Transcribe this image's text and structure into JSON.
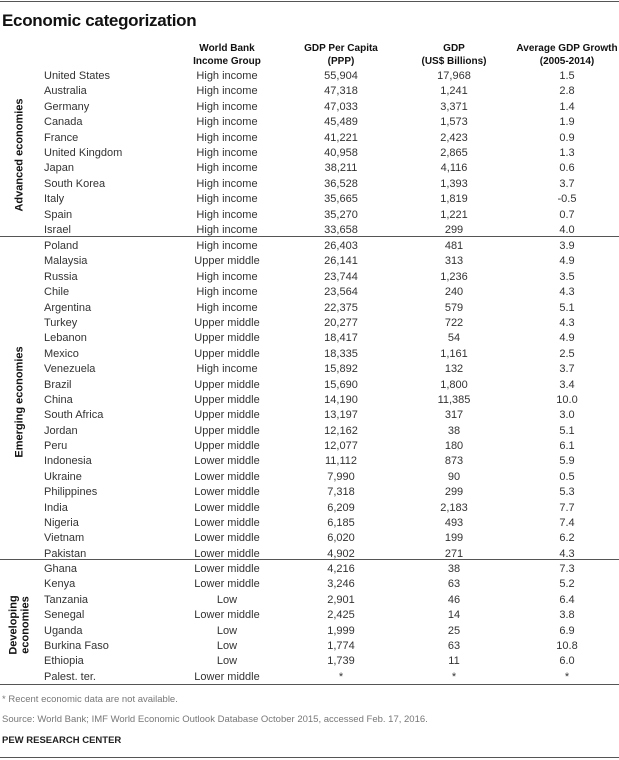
{
  "title": "Economic categorization",
  "headers": {
    "income": [
      "World Bank",
      "Income Group"
    ],
    "gdp_pc": [
      "GDP Per Capita",
      "(PPP)"
    ],
    "gdp": [
      "GDP",
      "(US$ Billions)"
    ],
    "growth": [
      "Average GDP Growth",
      "(2005-2014)"
    ]
  },
  "groups": [
    {
      "label": "Advanced economies",
      "rows": [
        [
          "United States",
          "High income",
          "55,904",
          "17,968",
          "1.5"
        ],
        [
          "Australia",
          "High income",
          "47,318",
          "1,241",
          "2.8"
        ],
        [
          "Germany",
          "High income",
          "47,033",
          "3,371",
          "1.4"
        ],
        [
          "Canada",
          "High income",
          "45,489",
          "1,573",
          "1.9"
        ],
        [
          "France",
          "High income",
          "41,221",
          "2,423",
          "0.9"
        ],
        [
          "United Kingdom",
          "High income",
          "40,958",
          "2,865",
          "1.3"
        ],
        [
          "Japan",
          "High income",
          "38,211",
          "4,116",
          "0.6"
        ],
        [
          "South Korea",
          "High income",
          "36,528",
          "1,393",
          "3.7"
        ],
        [
          "Italy",
          "High income",
          "35,665",
          "1,819",
          "-0.5"
        ],
        [
          "Spain",
          "High income",
          "35,270",
          "1,221",
          "0.7"
        ],
        [
          "Israel",
          "High income",
          "33,658",
          "299",
          "4.0"
        ]
      ]
    },
    {
      "label": "Emerging economies",
      "rows": [
        [
          "Poland",
          "High income",
          "26,403",
          "481",
          "3.9"
        ],
        [
          "Malaysia",
          "Upper middle",
          "26,141",
          "313",
          "4.9"
        ],
        [
          "Russia",
          "High income",
          "23,744",
          "1,236",
          "3.5"
        ],
        [
          "Chile",
          "High income",
          "23,564",
          "240",
          "4.3"
        ],
        [
          "Argentina",
          "High income",
          "22,375",
          "579",
          "5.1"
        ],
        [
          "Turkey",
          "Upper middle",
          "20,277",
          "722",
          "4.3"
        ],
        [
          "Lebanon",
          "Upper middle",
          "18,417",
          "54",
          "4.9"
        ],
        [
          "Mexico",
          "Upper middle",
          "18,335",
          "1,161",
          "2.5"
        ],
        [
          "Venezuela",
          "High income",
          "15,892",
          "132",
          "3.7"
        ],
        [
          "Brazil",
          "Upper middle",
          "15,690",
          "1,800",
          "3.4"
        ],
        [
          "China",
          "Upper middle",
          "14,190",
          "11,385",
          "10.0"
        ],
        [
          "South Africa",
          "Upper middle",
          "13,197",
          "317",
          "3.0"
        ],
        [
          "Jordan",
          "Upper middle",
          "12,162",
          "38",
          "5.1"
        ],
        [
          "Peru",
          "Upper middle",
          "12,077",
          "180",
          "6.1"
        ],
        [
          "Indonesia",
          "Lower middle",
          "11,112",
          "873",
          "5.9"
        ],
        [
          "Ukraine",
          "Lower middle",
          "7,990",
          "90",
          "0.5"
        ],
        [
          "Philippines",
          "Lower middle",
          "7,318",
          "299",
          "5.3"
        ],
        [
          "India",
          "Lower middle",
          "6,209",
          "2,183",
          "7.7"
        ],
        [
          "Nigeria",
          "Lower middle",
          "6,185",
          "493",
          "7.4"
        ],
        [
          "Vietnam",
          "Lower middle",
          "6,020",
          "199",
          "6.2"
        ],
        [
          "Pakistan",
          "Lower middle",
          "4,902",
          "271",
          "4.3"
        ]
      ]
    },
    {
      "label": "Developing economies",
      "label_lines": [
        "Developing",
        "economies"
      ],
      "rows": [
        [
          "Ghana",
          "Lower middle",
          "4,216",
          "38",
          "7.3"
        ],
        [
          "Kenya",
          "Lower middle",
          "3,246",
          "63",
          "5.2"
        ],
        [
          "Tanzania",
          "Low",
          "2,901",
          "46",
          "6.4"
        ],
        [
          "Senegal",
          "Lower middle",
          "2,425",
          "14",
          "3.8"
        ],
        [
          "Uganda",
          "Low",
          "1,999",
          "25",
          "6.9"
        ],
        [
          "Burkina Faso",
          "Low",
          "1,774",
          "63",
          "10.8"
        ],
        [
          "Ethiopia",
          "Low",
          "1,739",
          "11",
          "6.0"
        ],
        [
          "Palest. ter.",
          "Lower middle",
          "*",
          "*",
          "*"
        ]
      ]
    }
  ],
  "footnote": "* Recent economic data are not available.",
  "source": "Source: World Bank; IMF World Economic Outlook Database October 2015, accessed Feb. 17, 2016.",
  "brand": "PEW RESEARCH CENTER"
}
